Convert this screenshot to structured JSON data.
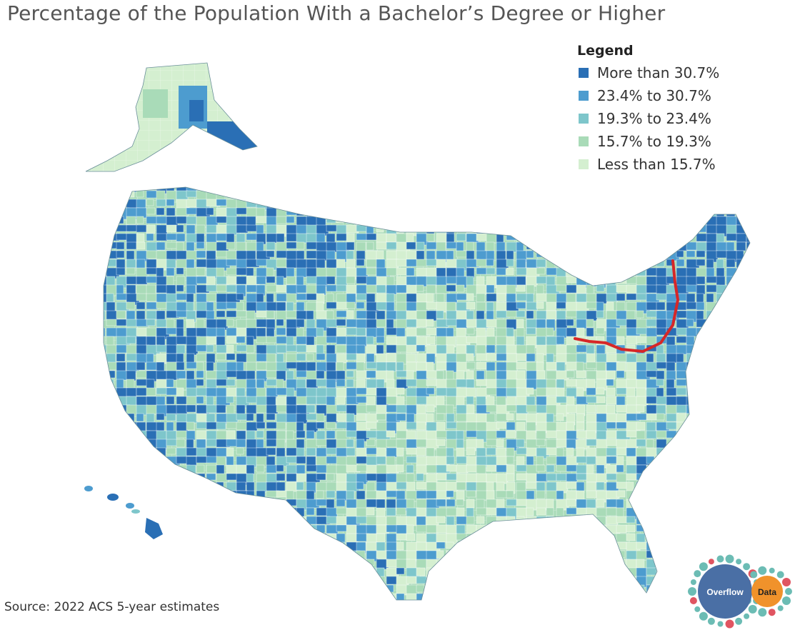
{
  "title": "Percentage of the Population With a Bachelor’s Degree or Higher",
  "legend": {
    "title": "Legend",
    "items": [
      {
        "label": "More than 30.7%",
        "color": "#2a6fb5"
      },
      {
        "label": "23.4% to 30.7%",
        "color": "#4d9ccf"
      },
      {
        "label": "19.3% to 23.4%",
        "color": "#7ec6cb"
      },
      {
        "label": "15.7% to 19.3%",
        "color": "#a9dbb8"
      },
      {
        "label": "Less than 15.7%",
        "color": "#d4efd0"
      }
    ]
  },
  "source": "Source: 2022 ACS 5-year estimates",
  "logo": {
    "left_text": "Overflow",
    "right_text": "Data",
    "left_color": "#4a6fa5",
    "right_color": "#f0922b",
    "dot_colors": [
      "#6cbcb4",
      "#e05561"
    ]
  },
  "annotation": {
    "line_color": "#d62728"
  }
}
